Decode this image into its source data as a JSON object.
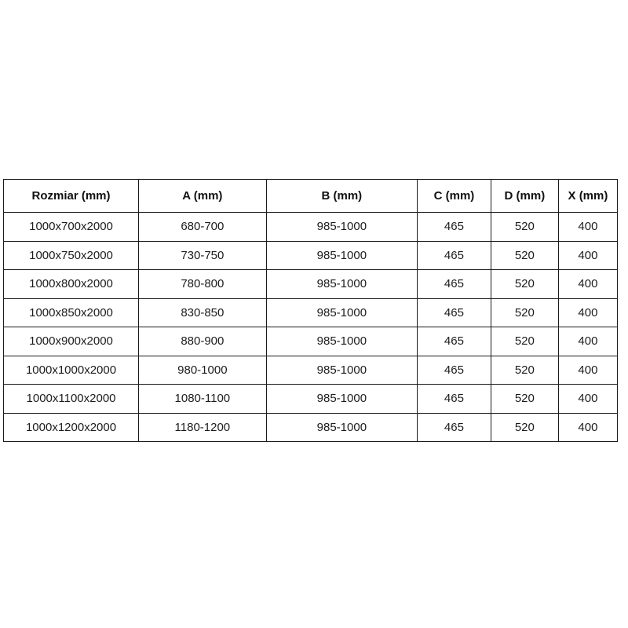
{
  "table": {
    "headers": [
      "Rozmiar (mm)",
      "A (mm)",
      "B (mm)",
      "C (mm)",
      "D (mm)",
      "X (mm)"
    ],
    "rows": [
      [
        "1000x700x2000",
        "680-700",
        "985-1000",
        "465",
        "520",
        "400"
      ],
      [
        "1000x750x2000",
        "730-750",
        "985-1000",
        "465",
        "520",
        "400"
      ],
      [
        "1000x800x2000",
        "780-800",
        "985-1000",
        "465",
        "520",
        "400"
      ],
      [
        "1000x850x2000",
        "830-850",
        "985-1000",
        "465",
        "520",
        "400"
      ],
      [
        "1000x900x2000",
        "880-900",
        "985-1000",
        "465",
        "520",
        "400"
      ],
      [
        "1000x1000x2000",
        "980-1000",
        "985-1000",
        "465",
        "520",
        "400"
      ],
      [
        "1000x1100x2000",
        "1080-1100",
        "985-1000",
        "465",
        "520",
        "400"
      ],
      [
        "1000x1200x2000",
        "1180-1200",
        "985-1000",
        "465",
        "520",
        "400"
      ]
    ],
    "border_color": "#1b1b1b",
    "background_color": "#ffffff"
  }
}
